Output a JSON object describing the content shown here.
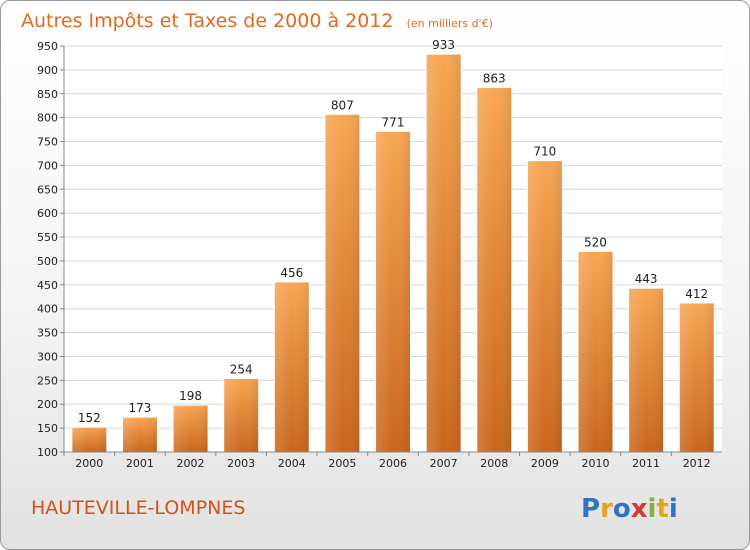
{
  "chart_data": {
    "type": "bar",
    "title": "Autres Impôts et Taxes de 2000 à 2012",
    "subtitle": "(en milliers d'€)",
    "categories": [
      "2000",
      "2001",
      "2002",
      "2003",
      "2004",
      "2005",
      "2006",
      "2007",
      "2008",
      "2009",
      "2010",
      "2011",
      "2012"
    ],
    "values": [
      152,
      173,
      198,
      254,
      456,
      807,
      771,
      933,
      863,
      710,
      520,
      443,
      412
    ],
    "data_labels": [
      "152",
      "173",
      "198",
      "254",
      "456",
      "807",
      "771",
      "933",
      "863",
      "710",
      "520",
      "443",
      "412"
    ],
    "ylim": [
      100,
      950
    ],
    "yticks": [
      "100",
      "150",
      "200",
      "250",
      "300",
      "350",
      "400",
      "450",
      "500",
      "550",
      "600",
      "650",
      "700",
      "750",
      "800",
      "850",
      "900",
      "950"
    ],
    "xlabel": "",
    "ylabel": "",
    "grid": true,
    "bar_color": "#f0943c",
    "legend": "none"
  },
  "footer": {
    "location": "HAUTEVILLE-LOMPNES",
    "brand": [
      "P",
      "r",
      "o",
      "x",
      "i",
      "t",
      "i"
    ],
    "brand_colors": [
      "#2f73c5",
      "#e8a21b",
      "#2f73c5",
      "#d53a2e",
      "#7cb342",
      "#e8a21b",
      "#2f73c5"
    ]
  }
}
